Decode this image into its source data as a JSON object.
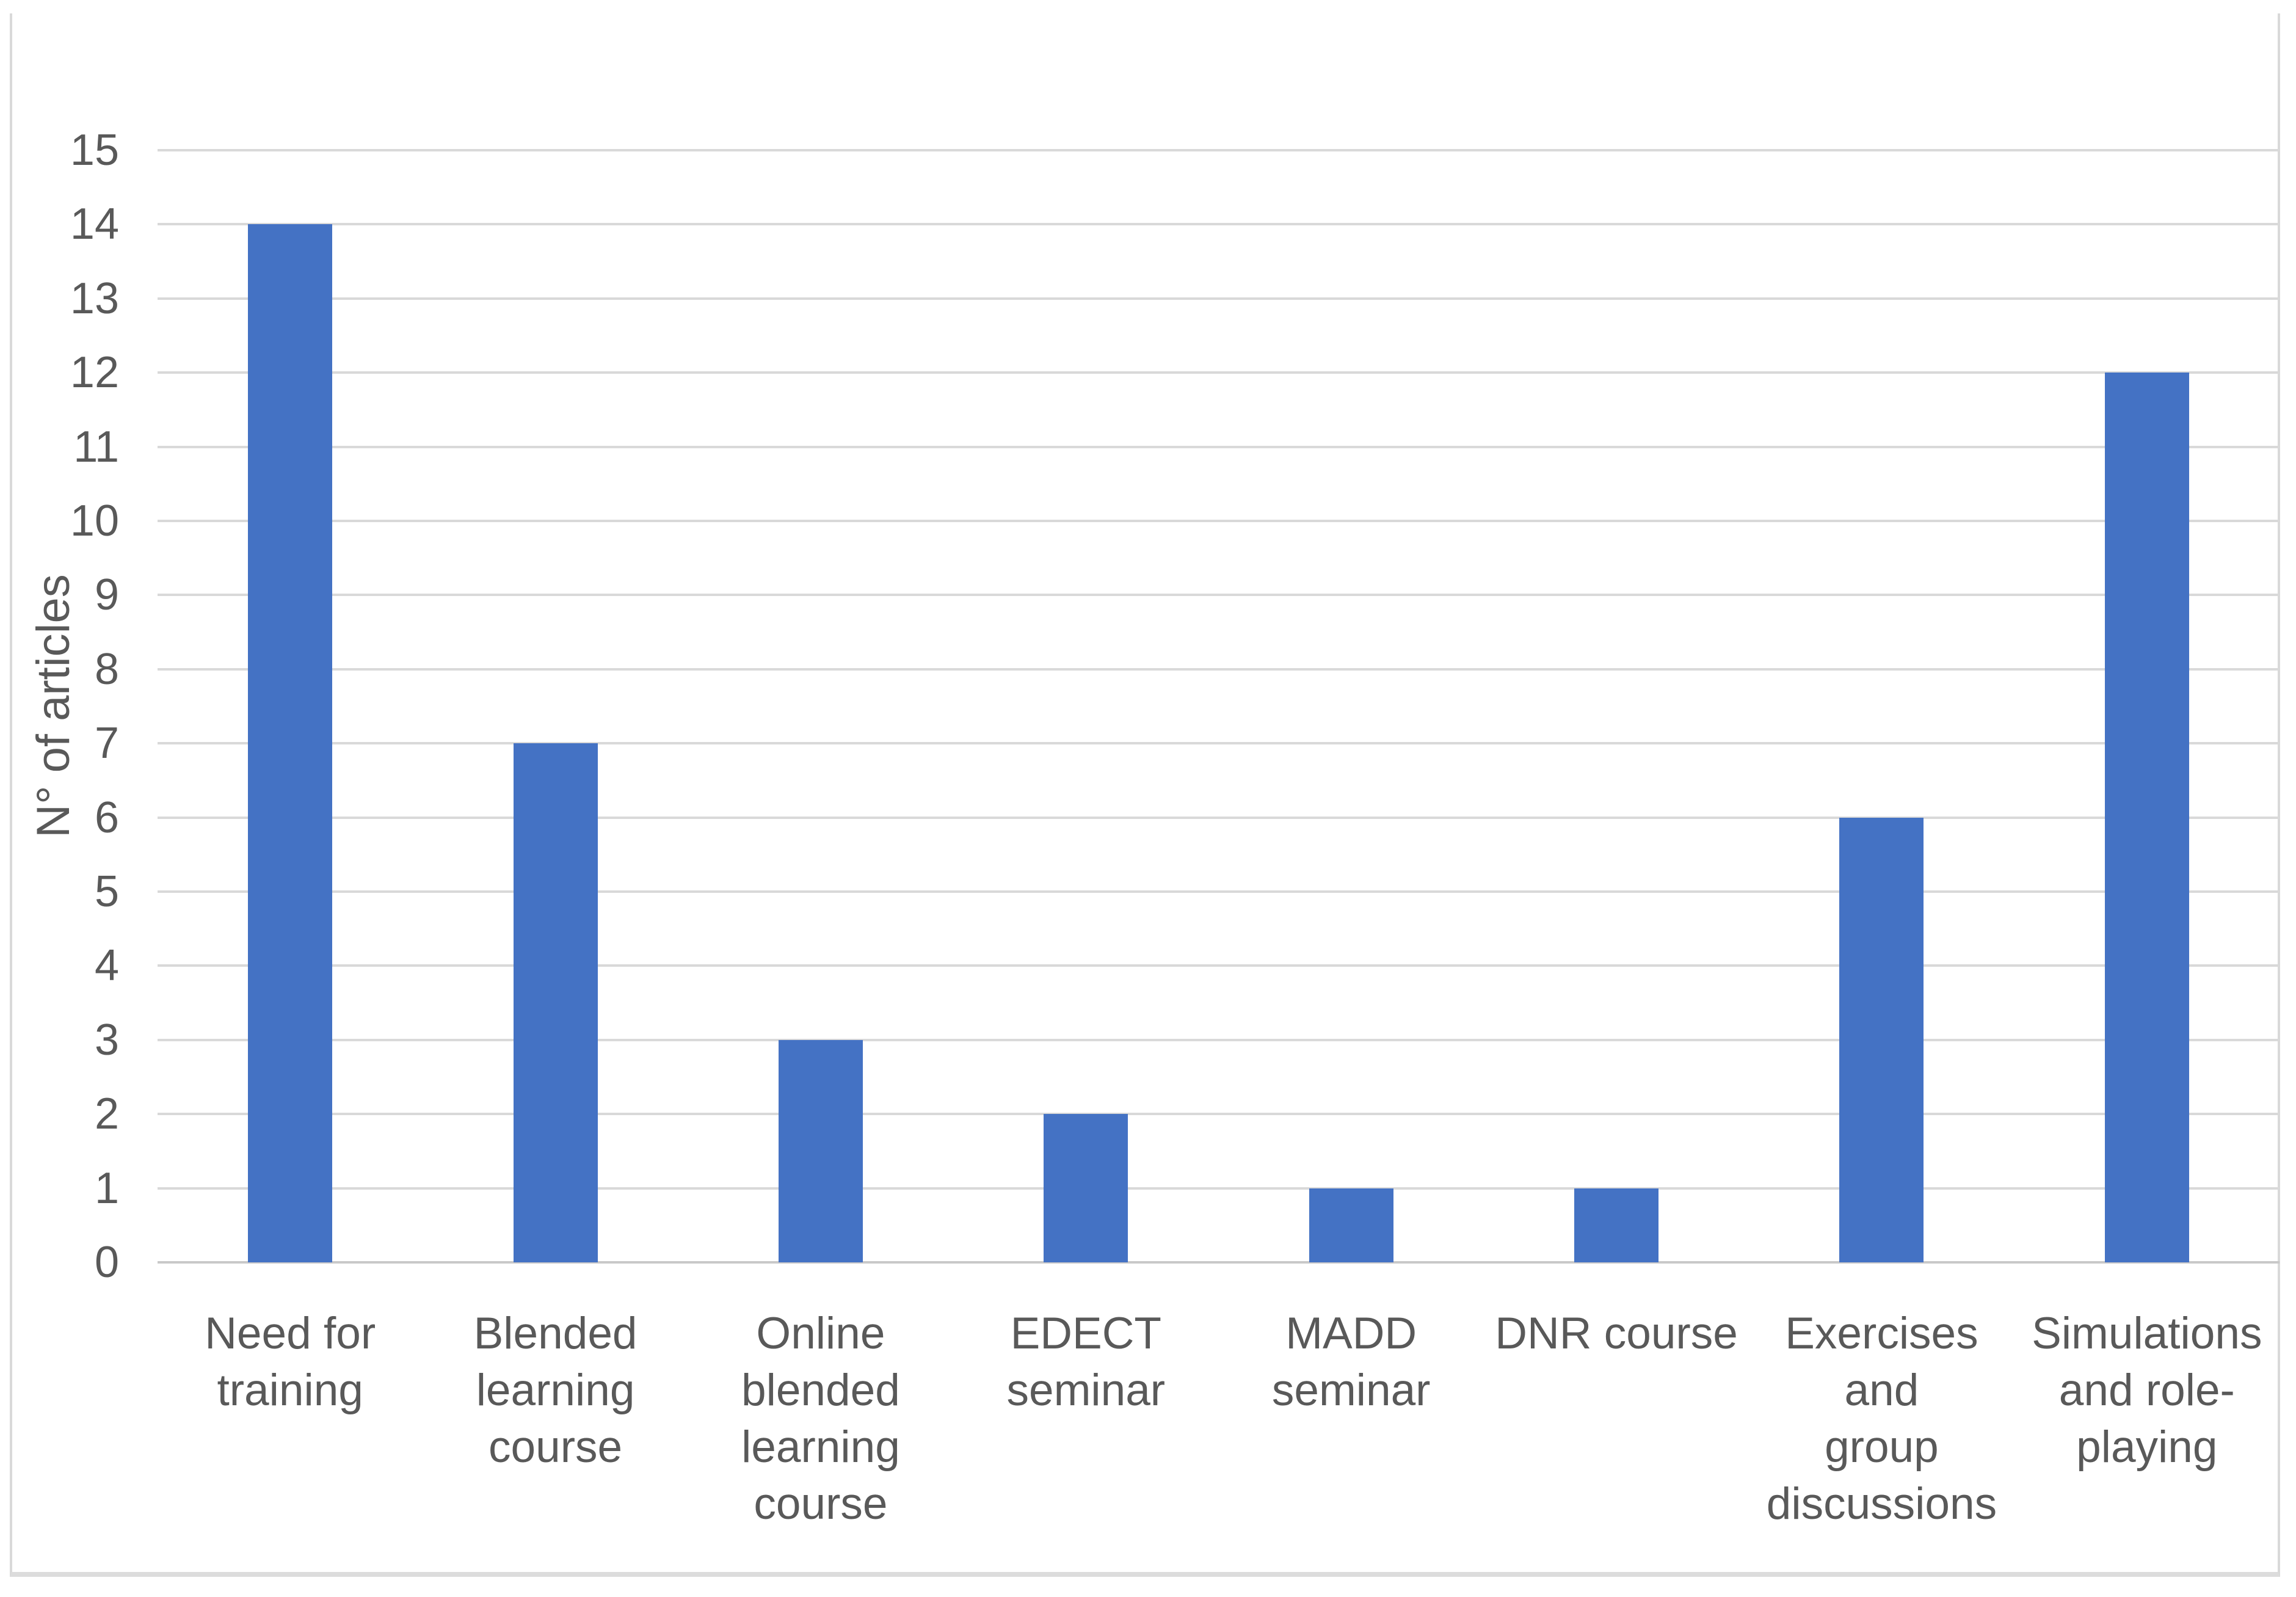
{
  "figure": {
    "kind": "excel-style-column-chart",
    "title": ""
  },
  "chart_data": {
    "type": "bar",
    "title": "",
    "xlabel": "",
    "ylabel": "N° of articles",
    "categories": [
      "Need for training",
      "Blended learning course",
      "Online blended learning course",
      "EDECT seminar",
      "MADD seminar",
      "DNR course",
      "Exercises and group discussions",
      "Simulations and role-playing"
    ],
    "category_lines": [
      [
        "Need for",
        "training"
      ],
      [
        "Blended",
        "learning",
        "course"
      ],
      [
        "Online",
        "blended",
        "learning",
        "course"
      ],
      [
        "EDECT",
        "seminar"
      ],
      [
        "MADD",
        "seminar"
      ],
      [
        "DNR course"
      ],
      [
        "Exercises and",
        "group",
        "discussions"
      ],
      [
        "Simulations",
        "and role-",
        "playing"
      ]
    ],
    "values": [
      14,
      7,
      3,
      2,
      1,
      1,
      6,
      12
    ],
    "ylim": [
      0,
      15
    ],
    "ytick_step": 1,
    "yticks": [
      0,
      1,
      2,
      3,
      4,
      5,
      6,
      7,
      8,
      9,
      10,
      11,
      12,
      13,
      14,
      15
    ],
    "grid": "horizontal-major-on",
    "legend": "none",
    "bar_color": "#4472c4",
    "gridline_color": "#d9d9d9",
    "axis_line_color": "#c9c9c9",
    "text_color": "#595959",
    "frame_border_color": "#d9d9d9"
  }
}
